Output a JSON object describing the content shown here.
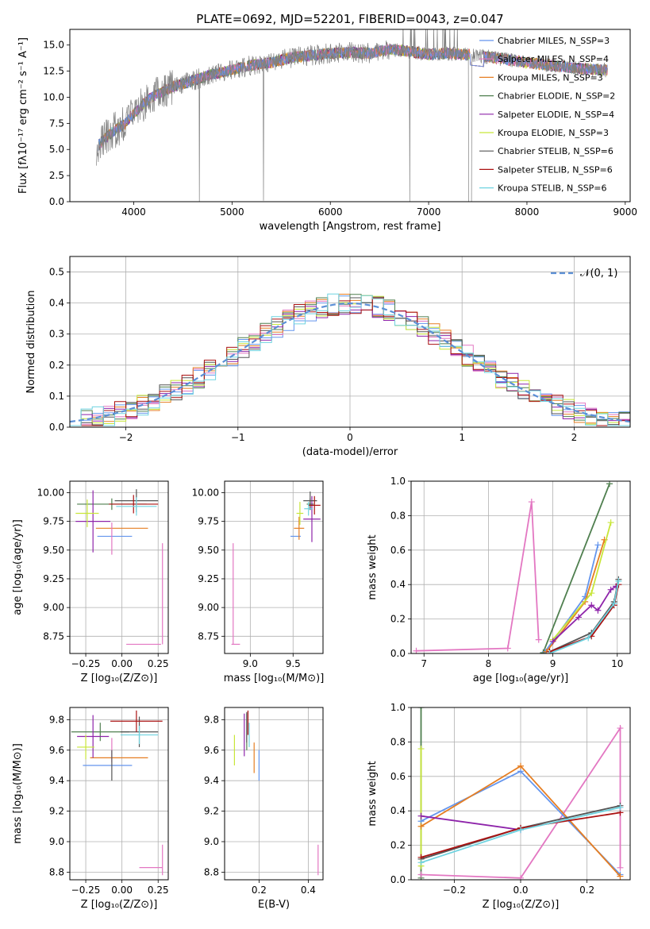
{
  "colors": {
    "chabrier_miles": "#6495ed",
    "salpeter_miles": "#e377c2",
    "kroupa_miles": "#e67e22",
    "chabrier_elodie": "#4f7f4f",
    "salpeter_elodie": "#8e24aa",
    "kroupa_elodie": "#c8e639",
    "chabrier_stelib": "#555555",
    "salpeter_stelib": "#aa1111",
    "kroupa_stelib": "#6fd3e0",
    "data": "#808080",
    "gauss": "#5b8fd6"
  },
  "chart_data": [
    {
      "type": "line",
      "title": "PLATE=0692, MJD=52201, FIBERID=0043, z=0.047",
      "xlabel": "wavelength [Angstrom, rest frame]",
      "ylabel": "Flux [fλ10⁻¹⁷ erg cm⁻² s⁻¹ A⁻¹]",
      "xlim": [
        3350,
        9050
      ],
      "ylim": [
        0,
        16.5
      ],
      "xticks": [
        "4000",
        "5000",
        "6000",
        "7000",
        "8000",
        "9000"
      ],
      "yticks": [
        "0.0",
        "2.5",
        "5.0",
        "7.5",
        "10.0",
        "12.5",
        "15.0"
      ],
      "legend_position": "right",
      "series": [
        {
          "name": "Chabrier MILES, N_SSP=3",
          "key": "chabrier_miles"
        },
        {
          "name": "Salpeter MILES, N_SSP=4",
          "key": "salpeter_miles"
        },
        {
          "name": "Kroupa MILES, N_SSP=3",
          "key": "kroupa_miles"
        },
        {
          "name": "Chabrier ELODIE, N_SSP=2",
          "key": "chabrier_elodie"
        },
        {
          "name": "Salpeter ELODIE, N_SSP=4",
          "key": "salpeter_elodie"
        },
        {
          "name": "Kroupa ELODIE, N_SSP=3",
          "key": "kroupa_elodie"
        },
        {
          "name": "Chabrier STELIB, N_SSP=6",
          "key": "chabrier_stelib"
        },
        {
          "name": "Salpeter STELIB, N_SSP=6",
          "key": "salpeter_stelib"
        },
        {
          "name": "Kroupa STELIB, N_SSP=6",
          "key": "kroupa_stelib"
        }
      ],
      "continuum": {
        "x": [
          3620,
          3700,
          3800,
          3900,
          4000,
          4100,
          4200,
          4400,
          4600,
          4800,
          5000,
          5200,
          5400,
          5600,
          5800,
          6000,
          6200,
          6400,
          6600,
          6800,
          7000,
          7200,
          7400,
          7600,
          7800,
          8000,
          8200,
          8400,
          8600,
          8800
        ],
        "y": [
          5.2,
          6.0,
          6.8,
          7.4,
          8.4,
          9.4,
          10.1,
          11.0,
          11.6,
          12.2,
          12.6,
          13.1,
          13.3,
          13.8,
          14.0,
          14.2,
          14.3,
          14.2,
          14.6,
          14.4,
          14.1,
          14.2,
          14.1,
          13.9,
          13.6,
          13.3,
          13.1,
          12.9,
          12.7,
          12.6
        ]
      }
    },
    {
      "type": "line",
      "title": "",
      "xlabel": "(data-model)/error",
      "ylabel": "Normed distribution",
      "xlim": [
        -2.5,
        2.5
      ],
      "ylim": [
        0,
        0.55
      ],
      "xticks": [
        "−2",
        "−1",
        "0",
        "1",
        "2"
      ],
      "yticks": [
        "0.0",
        "0.1",
        "0.2",
        "0.3",
        "0.4",
        "0.5"
      ],
      "legend": "𝒩(0, 1)",
      "legend_position": "top-right",
      "grid": true,
      "hist_bin_width": 0.1
    },
    {
      "type": "scatter",
      "xlabel": "Z [log₁₀(Z/Z⊙)]",
      "ylabel": "age  [log₁₀(age/yr)]",
      "xlim": [
        -0.36,
        0.32
      ],
      "ylim": [
        8.6,
        10.1
      ],
      "xticks": [
        "−0.25",
        "0.00",
        "0.25"
      ],
      "yticks": [
        "8.75",
        "9.00",
        "9.25",
        "9.50",
        "9.75",
        "10.00"
      ],
      "grid": true,
      "points": [
        {
          "key": "chabrier_miles",
          "x": -0.05,
          "y": 9.62,
          "xerr": 0.12,
          "yerr": 0.0
        },
        {
          "key": "salpeter_miles",
          "x": 0.15,
          "y": 8.68,
          "xerr": 0.12,
          "yerr": 0.0
        },
        {
          "key": "salpeter_miles",
          "x": 0.28,
          "y": 9.12,
          "xerr": 0.0,
          "yerr": 0.44
        },
        {
          "key": "kroupa_miles",
          "x": 0.0,
          "y": 9.69,
          "xerr": 0.18,
          "yerr": 0.0
        },
        {
          "key": "chabrier_elodie",
          "x": -0.07,
          "y": 9.9,
          "xerr": 0.24,
          "yerr": 0.05
        },
        {
          "key": "salpeter_elodie",
          "x": -0.2,
          "y": 9.75,
          "xerr": 0.12,
          "yerr": 0.27
        },
        {
          "key": "kroupa_elodie",
          "x": -0.24,
          "y": 9.82,
          "xerr": 0.08,
          "yerr": 0.12
        },
        {
          "key": "chabrier_stelib",
          "x": 0.1,
          "y": 9.93,
          "xerr": 0.15,
          "yerr": 0.1
        },
        {
          "key": "salpeter_stelib",
          "x": 0.08,
          "y": 9.9,
          "xerr": 0.17,
          "yerr": 0.08
        },
        {
          "key": "kroupa_stelib",
          "x": 0.1,
          "y": 9.88,
          "xerr": 0.14,
          "yerr": 0.08
        },
        {
          "key": "salpeter_miles",
          "x": -0.07,
          "y": 9.6,
          "xerr": 0.0,
          "yerr": 0.14
        }
      ]
    },
    {
      "type": "scatter",
      "xlabel": "mass [log₁₀(M/M⊙)]",
      "ylabel": "",
      "xlim": [
        8.7,
        9.85
      ],
      "ylim": [
        8.6,
        10.1
      ],
      "xticks": [
        "9.0",
        "9.5"
      ],
      "yticks": [
        "8.75",
        "9.00",
        "9.25",
        "9.50",
        "9.75",
        "10.00"
      ],
      "grid": true,
      "points": [
        {
          "key": "chabrier_miles",
          "x": 9.53,
          "y": 9.62,
          "xerr": 0.06,
          "yerr": 0.0
        },
        {
          "key": "salpeter_miles",
          "x": 8.83,
          "y": 8.68,
          "xerr": 0.05,
          "yerr": 0.0
        },
        {
          "key": "salpeter_miles",
          "x": 8.8,
          "y": 9.12,
          "xerr": 0.0,
          "yerr": 0.44
        },
        {
          "key": "kroupa_miles",
          "x": 9.57,
          "y": 9.69,
          "xerr": 0.06,
          "yerr": 0.1
        },
        {
          "key": "chabrier_elodie",
          "x": 9.7,
          "y": 9.9,
          "xerr": 0.04,
          "yerr": 0.05
        },
        {
          "key": "salpeter_elodie",
          "x": 9.72,
          "y": 9.77,
          "xerr": 0.1,
          "yerr": 0.2
        },
        {
          "key": "kroupa_elodie",
          "x": 9.58,
          "y": 9.82,
          "xerr": 0.04,
          "yerr": 0.1
        },
        {
          "key": "chabrier_stelib",
          "x": 9.7,
          "y": 9.93,
          "xerr": 0.08,
          "yerr": 0.08
        },
        {
          "key": "salpeter_stelib",
          "x": 9.75,
          "y": 9.89,
          "xerr": 0.07,
          "yerr": 0.08
        },
        {
          "key": "kroupa_stelib",
          "x": 9.68,
          "y": 9.86,
          "xerr": 0.05,
          "yerr": 0.06
        }
      ]
    },
    {
      "type": "line",
      "xlabel": "age  [log₁₀(age/yr)]",
      "ylabel": "mass weight",
      "xlim": [
        6.8,
        10.2
      ],
      "ylim": [
        0,
        1.0
      ],
      "xticks": [
        "7",
        "8",
        "9",
        "10"
      ],
      "yticks": [
        "0.0",
        "0.2",
        "0.4",
        "0.6",
        "0.8",
        "1.0"
      ],
      "grid": true,
      "series": [
        {
          "key": "salpeter_miles",
          "x": [
            6.88,
            8.3,
            8.67,
            8.78
          ],
          "y": [
            0.015,
            0.03,
            0.88,
            0.08
          ]
        },
        {
          "key": "chabrier_elodie",
          "x": [
            8.85,
            9.88
          ],
          "y": [
            0.005,
            0.985
          ]
        },
        {
          "key": "chabrier_miles",
          "x": [
            8.88,
            9.5,
            9.7
          ],
          "y": [
            0.01,
            0.33,
            0.63
          ]
        },
        {
          "key": "kroupa_miles",
          "x": [
            8.9,
            9.5,
            9.8
          ],
          "y": [
            0.01,
            0.3,
            0.66
          ]
        },
        {
          "key": "kroupa_elodie",
          "x": [
            9.0,
            9.6,
            9.9
          ],
          "y": [
            0.08,
            0.35,
            0.76
          ]
        },
        {
          "key": "salpeter_elodie",
          "x": [
            9.0,
            9.4,
            9.6,
            9.7,
            9.9,
            9.98
          ],
          "y": [
            0.07,
            0.21,
            0.28,
            0.25,
            0.37,
            0.39
          ]
        },
        {
          "key": "chabrier_stelib",
          "x": [
            8.95,
            9.6,
            9.95,
            10.02
          ],
          "y": [
            0.01,
            0.12,
            0.3,
            0.43
          ]
        },
        {
          "key": "salpeter_stelib",
          "x": [
            8.95,
            9.6,
            9.95,
            10.02
          ],
          "y": [
            0.01,
            0.1,
            0.28,
            0.4
          ]
        },
        {
          "key": "kroupa_stelib",
          "x": [
            8.95,
            9.55,
            9.95,
            10.02
          ],
          "y": [
            0.0,
            0.09,
            0.29,
            0.42
          ]
        }
      ]
    },
    {
      "type": "scatter",
      "xlabel": "Z [log₁₀(Z/Z⊙)]",
      "ylabel": "mass [log₁₀(M/M⊙)]",
      "xlim": [
        -0.36,
        0.32
      ],
      "ylim": [
        8.75,
        9.88
      ],
      "xticks": [
        "−0.25",
        "0.00",
        "0.25"
      ],
      "yticks": [
        "8.8",
        "9.0",
        "9.2",
        "9.4",
        "9.6",
        "9.8"
      ],
      "grid": true,
      "points": [
        {
          "key": "chabrier_miles",
          "x": -0.1,
          "y": 9.5,
          "xerr": 0.17,
          "yerr": 0.0
        },
        {
          "key": "salpeter_miles",
          "x": 0.2,
          "y": 8.83,
          "xerr": 0.08,
          "yerr": 0.0
        },
        {
          "key": "salpeter_miles",
          "x": 0.28,
          "y": 8.88,
          "xerr": 0.0,
          "yerr": 0.1
        },
        {
          "key": "kroupa_miles",
          "x": -0.02,
          "y": 9.55,
          "xerr": 0.2,
          "yerr": 0.0
        },
        {
          "key": "chabrier_elodie",
          "x": -0.15,
          "y": 9.72,
          "xerr": 0.2,
          "yerr": 0.06
        },
        {
          "key": "salpeter_elodie",
          "x": -0.2,
          "y": 9.69,
          "xerr": 0.11,
          "yerr": 0.14
        },
        {
          "key": "kroupa_elodie",
          "x": -0.25,
          "y": 9.62,
          "xerr": 0.06,
          "yerr": 0.08
        },
        {
          "key": "chabrier_stelib",
          "x": 0.12,
          "y": 9.72,
          "xerr": 0.13,
          "yerr": 0.1
        },
        {
          "key": "salpeter_stelib",
          "x": 0.1,
          "y": 9.79,
          "xerr": 0.18,
          "yerr": 0.07
        },
        {
          "key": "kroupa_stelib",
          "x": 0.12,
          "y": 9.7,
          "xerr": 0.13,
          "yerr": 0.06
        },
        {
          "key": "salpeter_miles",
          "x": -0.07,
          "y": 9.6,
          "xerr": 0.0,
          "yerr": 0.08
        },
        {
          "key": "chabrier_stelib",
          "x": -0.07,
          "y": 9.5,
          "xerr": 0.0,
          "yerr": 0.1
        }
      ]
    },
    {
      "type": "scatter",
      "xlabel": "E(B-V)",
      "ylabel": "",
      "xlim": [
        0.06,
        0.46
      ],
      "ylim": [
        8.75,
        9.88
      ],
      "xticks": [
        "0.2",
        "0.4"
      ],
      "yticks": [
        "8.8",
        "9.0",
        "9.2",
        "9.4",
        "9.6",
        "9.8"
      ],
      "grid": true,
      "points": [
        {
          "key": "chabrier_miles",
          "x": 0.2,
          "y": 9.5,
          "xerr": 0.0,
          "yerr": 0.1
        },
        {
          "key": "salpeter_miles",
          "x": 0.44,
          "y": 8.88,
          "xerr": 0.0,
          "yerr": 0.1
        },
        {
          "key": "kroupa_miles",
          "x": 0.18,
          "y": 9.55,
          "xerr": 0.0,
          "yerr": 0.1
        },
        {
          "key": "chabrier_elodie",
          "x": 0.15,
          "y": 9.72,
          "xerr": 0.0,
          "yerr": 0.12
        },
        {
          "key": "salpeter_elodie",
          "x": 0.14,
          "y": 9.7,
          "xerr": 0.0,
          "yerr": 0.14
        },
        {
          "key": "kroupa_elodie",
          "x": 0.1,
          "y": 9.6,
          "xerr": 0.0,
          "yerr": 0.1
        },
        {
          "key": "chabrier_stelib",
          "x": 0.15,
          "y": 9.75,
          "xerr": 0.0,
          "yerr": 0.1
        },
        {
          "key": "salpeter_stelib",
          "x": 0.155,
          "y": 9.78,
          "xerr": 0.0,
          "yerr": 0.08
        },
        {
          "key": "kroupa_stelib",
          "x": 0.16,
          "y": 9.7,
          "xerr": 0.0,
          "yerr": 0.08
        }
      ]
    },
    {
      "type": "line",
      "xlabel": "Z [log₁₀(Z/Z⊙)]",
      "ylabel": "mass weight",
      "xlim": [
        -0.33,
        0.33
      ],
      "ylim": [
        0,
        1.0
      ],
      "xticks": [
        "−0.2",
        "0.0",
        "0.2"
      ],
      "yticks": [
        "0.0",
        "0.2",
        "0.4",
        "0.6",
        "0.8",
        "1.0"
      ],
      "grid": true,
      "series": [
        {
          "key": "chabrier_elodie",
          "x": [
            -0.3,
            -0.3
          ],
          "y": [
            0.01,
            1.0
          ]
        },
        {
          "key": "kroupa_elodie",
          "x": [
            -0.3,
            -0.3
          ],
          "y": [
            0.08,
            0.76
          ]
        },
        {
          "key": "salpeter_miles",
          "x": [
            -0.3,
            0.0,
            0.3,
            0.3
          ],
          "y": [
            0.03,
            0.01,
            0.88,
            0.07
          ]
        },
        {
          "key": "chabrier_miles",
          "x": [
            -0.3,
            0.0,
            0.3
          ],
          "y": [
            0.34,
            0.63,
            0.03
          ]
        },
        {
          "key": "kroupa_miles",
          "x": [
            -0.3,
            0.0,
            0.3
          ],
          "y": [
            0.31,
            0.66,
            0.02
          ]
        },
        {
          "key": "salpeter_elodie",
          "x": [
            -0.3,
            0.0
          ],
          "y": [
            0.37,
            0.29
          ]
        },
        {
          "key": "chabrier_stelib",
          "x": [
            -0.3,
            0.0,
            0.3
          ],
          "y": [
            0.12,
            0.3,
            0.43
          ]
        },
        {
          "key": "salpeter_stelib",
          "x": [
            -0.3,
            0.0,
            0.3
          ],
          "y": [
            0.13,
            0.3,
            0.39
          ]
        },
        {
          "key": "kroupa_stelib",
          "x": [
            -0.3,
            0.0,
            0.3
          ],
          "y": [
            0.1,
            0.29,
            0.42
          ]
        }
      ]
    }
  ]
}
